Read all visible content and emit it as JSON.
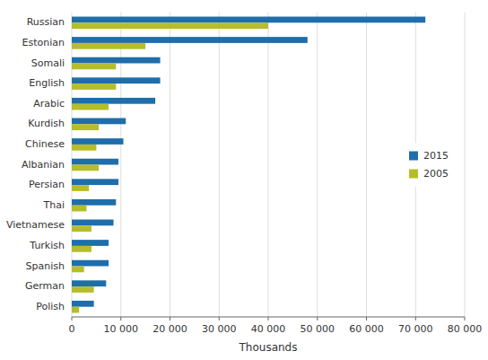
{
  "chart_data": {
    "type": "bar",
    "orientation": "horizontal",
    "categories": [
      "Russian",
      "Estonian",
      "Somali",
      "English",
      "Arabic",
      "Kurdish",
      "Chinese",
      "Albanian",
      "Persian",
      "Thai",
      "Vietnamese",
      "Turkish",
      "Spanish",
      "German",
      "Polish"
    ],
    "series": [
      {
        "name": "2015",
        "color": "#1f6eab",
        "values": [
          72000,
          48000,
          18000,
          18000,
          17000,
          11000,
          10500,
          9500,
          9500,
          9000,
          8500,
          7500,
          7500,
          7000,
          4500
        ]
      },
      {
        "name": "2005",
        "color": "#b5bd2b",
        "values": [
          40000,
          15000,
          9000,
          9000,
          7500,
          5500,
          5000,
          5500,
          3500,
          3000,
          4000,
          4000,
          2500,
          4500,
          1500
        ]
      }
    ],
    "x_label": "Thousands",
    "xlim": [
      0,
      80000
    ],
    "xticks": [
      0,
      {
        "value": 10000,
        "label": "10 000"
      },
      {
        "value": 20000,
        "label": "20 000"
      },
      {
        "value": 30000,
        "label": "30 000"
      },
      {
        "value": 40000,
        "label": "40 000"
      },
      {
        "value": 50000,
        "label": "50 000"
      },
      {
        "value": 60000,
        "label": "60 000"
      },
      {
        "value": 70000,
        "label": "70 000"
      },
      {
        "value": 80000,
        "label": "80 000"
      }
    ],
    "grid": true,
    "legend": "right"
  }
}
